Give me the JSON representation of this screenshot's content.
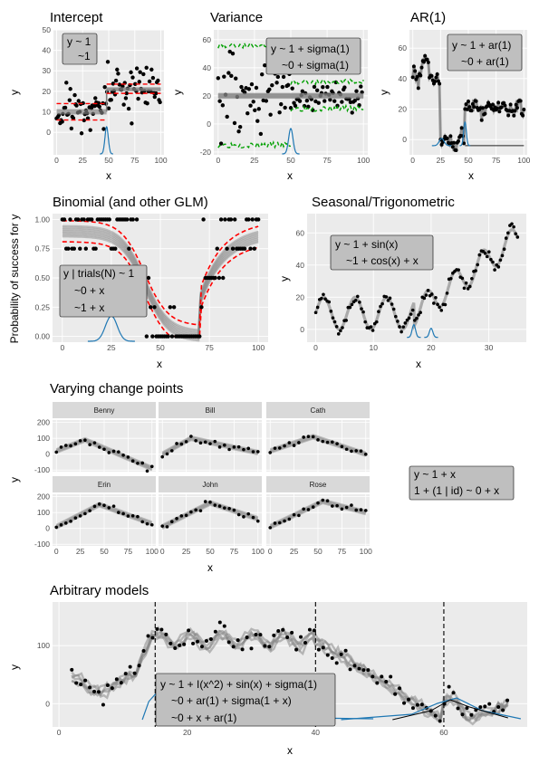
{
  "panels": {
    "intercept": {
      "title": "Intercept",
      "xlabel": "x",
      "ylabel": "y",
      "formula": [
        "y ~ 1",
        "~1"
      ],
      "xticks": [
        "0",
        "25",
        "50",
        "75",
        "100"
      ],
      "yticks": [
        "0",
        "10",
        "20",
        "30",
        "40",
        "50"
      ]
    },
    "variance": {
      "title": "Variance",
      "xlabel": "x",
      "ylabel": "y",
      "formula": [
        "y ~ 1 + sigma(1)",
        "~0 + sigma(1)"
      ],
      "xticks": [
        "0",
        "25",
        "50",
        "75",
        "100"
      ],
      "yticks": [
        "-20",
        "0",
        "20",
        "40",
        "60"
      ]
    },
    "ar1": {
      "title": "AR(1)",
      "xlabel": "x",
      "ylabel": "y",
      "formula": [
        "y ~ 1 + ar(1)",
        "~0 + ar(1)"
      ],
      "xticks": [
        "0",
        "25",
        "50",
        "75",
        "100"
      ],
      "yticks": [
        "0",
        "20",
        "40",
        "60"
      ]
    },
    "binomial": {
      "title": "Binomial (and other GLM)",
      "xlabel": "x",
      "ylabel": "Probability of success for y",
      "formula": [
        "y | trials(N) ~ 1",
        "~0 + x",
        "~1 + x"
      ],
      "xticks": [
        "0",
        "25",
        "50",
        "75",
        "100"
      ],
      "yticks": [
        "0.00",
        "0.25",
        "0.50",
        "0.75",
        "1.00"
      ]
    },
    "seasonal": {
      "title": "Seasonal/Trigonometric",
      "xlabel": "x",
      "ylabel": "y",
      "formula": [
        "y ~ 1 + sin(x)",
        "~1 + cos(x) + x"
      ],
      "xticks": [
        "0",
        "10",
        "20",
        "30"
      ],
      "yticks": [
        "0",
        "20",
        "40",
        "60"
      ]
    },
    "varying": {
      "title": "Varying change points",
      "xlabel": "x",
      "ylabel": "y",
      "formula": [
        "y ~ 1 + x",
        "1 + (1 | id) ~ 0 + x"
      ],
      "facets": [
        "Benny",
        "Bill",
        "Cath",
        "Erin",
        "John",
        "Rose"
      ],
      "xticks": [
        "0",
        "25",
        "50",
        "75",
        "100"
      ],
      "yticks": [
        "-100",
        "0",
        "100",
        "200"
      ]
    },
    "arbitrary": {
      "title": "Arbitrary models",
      "xlabel": "x",
      "ylabel": "y",
      "formula": [
        "y ~ 1 + I(x^2) + sin(x) + sigma(1)",
        "~0 + ar(1) + sigma(1 + x)",
        "~0 + x + ar(1)"
      ],
      "xticks": [
        "0",
        "20",
        "40",
        "60"
      ],
      "yticks": [
        "0",
        "100"
      ]
    }
  },
  "colors": {
    "panel_bg": "#ebebeb",
    "grid": "#ffffff",
    "point": "#000000",
    "fit": "#7f7f7f",
    "interval": "#ff0000",
    "sigma": "#00a000",
    "cp_density": "#1f78b4",
    "label_box": "#bfbfbf"
  },
  "chart_data": [
    {
      "id": "intercept",
      "type": "scatter",
      "xlim": [
        -3,
        103
      ],
      "ylim": [
        -11,
        50
      ],
      "segments": [
        {
          "x": [
            0,
            48
          ],
          "y": 10
        },
        {
          "x": [
            48,
            100
          ],
          "y": 21
        }
      ],
      "interval": [
        {
          "x": [
            0,
            48
          ],
          "lo": 6,
          "hi": 14
        },
        {
          "x": [
            48,
            100
          ],
          "lo": 19,
          "hi": 23.5
        }
      ],
      "change_point_density_center": 48
    },
    {
      "id": "variance",
      "type": "scatter",
      "xlim": [
        -3,
        103
      ],
      "ylim": [
        -22,
        67
      ],
      "fit_level": 20,
      "sigma_band": [
        {
          "x": [
            0,
            50
          ],
          "lo": -15,
          "hi": 56
        },
        {
          "x": [
            50,
            100
          ],
          "lo": 11,
          "hi": 30
        }
      ],
      "change_point_density_center": 50
    },
    {
      "id": "ar1",
      "type": "line",
      "xlim": [
        -3,
        103
      ],
      "ylim": [
        -10,
        72
      ],
      "levels": [
        {
          "x": [
            0,
            25
          ],
          "approx": 40
        },
        {
          "x": [
            25,
            47
          ],
          "approx": 0
        },
        {
          "x": [
            47,
            100
          ],
          "approx": 20
        }
      ],
      "change_point_density_centers": [
        26,
        47
      ]
    },
    {
      "id": "binomial",
      "type": "line",
      "xlim": [
        -5,
        105
      ],
      "ylim": [
        -0.05,
        1.05
      ],
      "segments": [
        {
          "x": [
            0,
            70
          ],
          "shape": "logistic decreasing"
        },
        {
          "x": [
            70,
            100
          ],
          "shape": "increasing from 0.3 to 0.9"
        }
      ],
      "change_point_density_center": 25
    },
    {
      "id": "seasonal",
      "type": "line",
      "xlim": [
        -1.5,
        36.5
      ],
      "ylim": [
        -8,
        72
      ],
      "segments": [
        {
          "x": [
            0,
            17
          ],
          "shape": "sine around 10"
        },
        {
          "x": [
            17,
            35
          ],
          "shape": "cos + linear trend"
        }
      ],
      "change_point_density_centers": [
        17,
        20
      ]
    },
    {
      "id": "varying",
      "type": "line",
      "xlim": [
        -4,
        104
      ],
      "ylim": [
        -110,
        215
      ],
      "facets": [
        {
          "name": "Benny",
          "cp": 30,
          "start": 20,
          "peak": 90,
          "end": -90
        },
        {
          "name": "Bill",
          "cp": 30,
          "start": 0,
          "peak": 100,
          "end": 10
        },
        {
          "name": "Cath",
          "cp": 45,
          "start": 20,
          "peak": 110,
          "end": 0
        },
        {
          "name": "Erin",
          "cp": 45,
          "start": 10,
          "peak": 150,
          "end": 30
        },
        {
          "name": "John",
          "cp": 50,
          "start": 10,
          "peak": 160,
          "end": 60
        },
        {
          "name": "Rose",
          "cp": 55,
          "start": 10,
          "peak": 170,
          "end": 100
        }
      ]
    },
    {
      "id": "arbitrary",
      "type": "line",
      "xlim": [
        -1,
        73
      ],
      "ylim": [
        -40,
        175
      ],
      "change_points_x": [
        15,
        40,
        60
      ],
      "segments": [
        {
          "x": [
            0,
            15
          ],
          "shape": "quadratic dip"
        },
        {
          "x": [
            15,
            40
          ],
          "shape": "sin around 110"
        },
        {
          "x": [
            40,
            60
          ],
          "shape": "linear decline to -30"
        },
        {
          "x": [
            60,
            70
          ],
          "shape": "AR bump"
        }
      ]
    }
  ]
}
